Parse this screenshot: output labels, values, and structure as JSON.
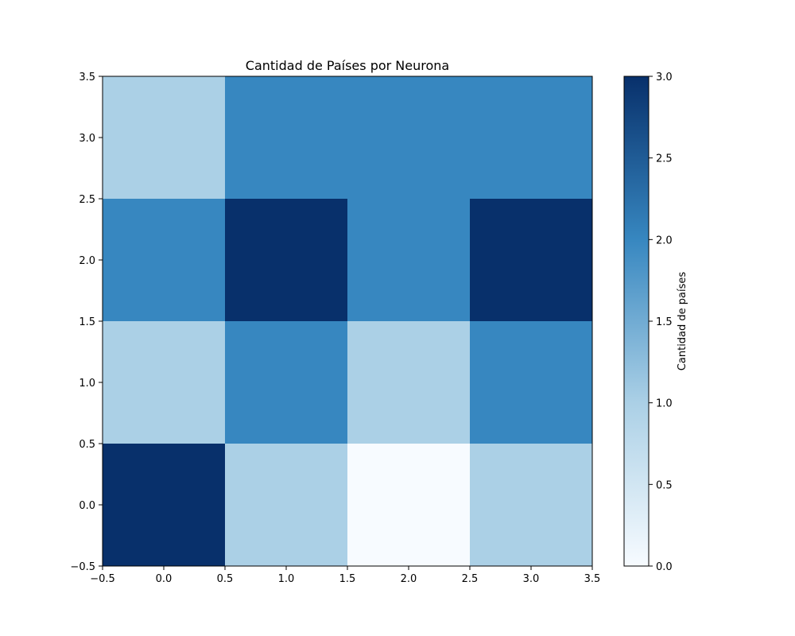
{
  "chart_data": {
    "type": "heatmap",
    "title": "Cantidad de Países por Neurona",
    "xlabel": "",
    "ylabel": "",
    "xlim": [
      -0.5,
      3.5
    ],
    "ylim": [
      -0.5,
      3.5
    ],
    "x_ticks": [
      "−0.5",
      "0.0",
      "0.5",
      "1.0",
      "1.5",
      "2.0",
      "2.5",
      "3.0",
      "3.5"
    ],
    "y_ticks": [
      "−0.5",
      "0.0",
      "0.5",
      "1.0",
      "1.5",
      "2.0",
      "2.5",
      "3.0",
      "3.5"
    ],
    "grid": false,
    "colormap": "Blues",
    "values": [
      [
        3,
        1,
        0,
        1
      ],
      [
        1,
        2,
        1,
        2
      ],
      [
        2,
        3,
        2,
        3
      ],
      [
        1,
        2,
        2,
        2
      ]
    ],
    "colorbar": {
      "label": "Cantidad de países",
      "range": [
        0,
        3
      ],
      "ticks": [
        "0.0",
        "0.5",
        "1.0",
        "1.5",
        "2.0",
        "2.5",
        "3.0"
      ],
      "colors": {
        "0": "#f7fbff",
        "1": "#abd0e6",
        "2": "#3787c0",
        "3": "#08306b"
      }
    }
  }
}
